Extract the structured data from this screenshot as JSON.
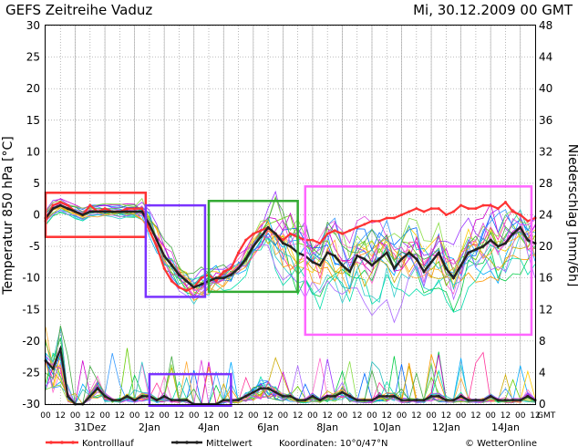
{
  "header": {
    "title": "GEFS  Zeitreihe  Vaduz",
    "datetime": "Mi,  30.12.2009  00  GMT"
  },
  "footer": {
    "legend_control": "Kontrolllauf",
    "legend_mean": "Mittelwert",
    "coordinates": "Koordinaten:  10°0/47°N",
    "credit": "© WetterOnline"
  },
  "colors": {
    "control": "#ff3333",
    "mean": "#222222",
    "box_red": "#ff3333",
    "box_purple": "#7a33ff",
    "box_green": "#33aa33",
    "box_magenta": "#ff66ff"
  },
  "chart_data": {
    "type": "line",
    "title": "GEFS  Zeitreihe  Vaduz",
    "ylabel": "Temperatur 850 hPa [°C]",
    "y2label": "Niederschlag [mm/6h]",
    "ylim": [
      -30,
      30
    ],
    "y2lim": [
      0,
      48
    ],
    "yticks": [
      30,
      25,
      20,
      15,
      10,
      5,
      0,
      -5,
      -10,
      -15,
      -20,
      -25,
      -30
    ],
    "y2ticks": [
      48,
      44,
      40,
      36,
      32,
      28,
      24,
      20,
      16,
      12,
      8,
      4,
      0
    ],
    "xlim": [
      0,
      66
    ],
    "x_units": "6-hour steps from 30.12.2009 00 GMT",
    "hour_ticks": [
      "00",
      "12",
      "00",
      "12",
      "00",
      "12",
      "00",
      "12",
      "00",
      "12",
      "00",
      "12",
      "00",
      "12",
      "00",
      "12",
      "00",
      "12",
      "00",
      "12",
      "00",
      "12",
      "00",
      "12",
      "00",
      "12",
      "00",
      "12",
      "00",
      "12",
      "00",
      "12",
      "00",
      "12"
    ],
    "hour_tick_suffix": "GMT",
    "date_labels": [
      "31Dez",
      "2Jan",
      "4Jan",
      "6Jan",
      "8Jan",
      "10Jan",
      "12Jan",
      "14Jan"
    ],
    "grid": true,
    "series": [
      {
        "name": "Mittelwert",
        "axis": "temperature",
        "values": [
          -0.5,
          1.0,
          1.5,
          1.0,
          0.5,
          0.0,
          0.5,
          0.5,
          0.5,
          0.5,
          0.5,
          0.5,
          0.5,
          0.5,
          -1.5,
          -4,
          -6.5,
          -8,
          -9.5,
          -10.5,
          -11.5,
          -11,
          -10.5,
          -10,
          -10,
          -9.5,
          -8.5,
          -7,
          -5,
          -3.5,
          -2,
          -3,
          -4.5,
          -5,
          -6,
          -6.5,
          -7.5,
          -8,
          -6,
          -6.5,
          -8,
          -9,
          -6.5,
          -7,
          -8,
          -7,
          -6,
          -8.5,
          -7,
          -6,
          -7,
          -9,
          -7.5,
          -6,
          -8.5,
          -10,
          -8,
          -6,
          -5.5,
          -5,
          -4,
          -5,
          -4.5,
          -3,
          -2,
          -4,
          -4.5
        ]
      },
      {
        "name": "Kontrolllauf",
        "axis": "temperature",
        "values": [
          -1,
          1.5,
          2,
          1.5,
          0.5,
          0,
          1.5,
          0.5,
          1,
          0.5,
          0.5,
          1,
          1,
          1,
          -2.5,
          -5,
          -8.5,
          -10.5,
          -11.5,
          -12,
          -11.5,
          -10,
          -9.5,
          -10.5,
          -9,
          -8.5,
          -6,
          -4,
          -3,
          -2.5,
          -2,
          -3,
          -4,
          -3,
          -3.5,
          -4,
          -4,
          -4.5,
          -3,
          -2.5,
          -3,
          -2.5,
          -2,
          -1.5,
          -1,
          -1,
          -0.5,
          -0.5,
          0,
          0.5,
          1,
          0.5,
          1,
          1,
          0,
          0.5,
          1.5,
          1,
          1,
          1.5,
          1.5,
          1,
          2,
          0.5,
          0,
          -1,
          -0.5
        ]
      },
      {
        "name": "Mittelwert Niederschlag",
        "axis": "precipitation",
        "values": [
          5.5,
          4.5,
          7,
          1,
          0,
          0,
          1,
          2,
          1,
          0.5,
          0.5,
          1,
          0.5,
          1,
          1,
          0.5,
          1,
          0.5,
          0.5,
          0.5,
          0,
          0,
          0,
          0,
          0.5,
          0.5,
          0.5,
          1,
          1.5,
          2,
          2,
          1.5,
          1,
          1,
          0.5,
          0.5,
          1,
          0.5,
          1,
          1,
          1.5,
          1,
          0.5,
          0.5,
          0.5,
          1,
          1,
          1,
          0.5,
          0.5,
          0.5,
          0.5,
          1,
          1,
          0.5,
          0.5,
          1,
          0.5,
          0.5,
          0.5,
          1,
          0.5,
          0.5,
          0.5,
          0.5,
          1,
          0.5
        ]
      }
    ]
  }
}
